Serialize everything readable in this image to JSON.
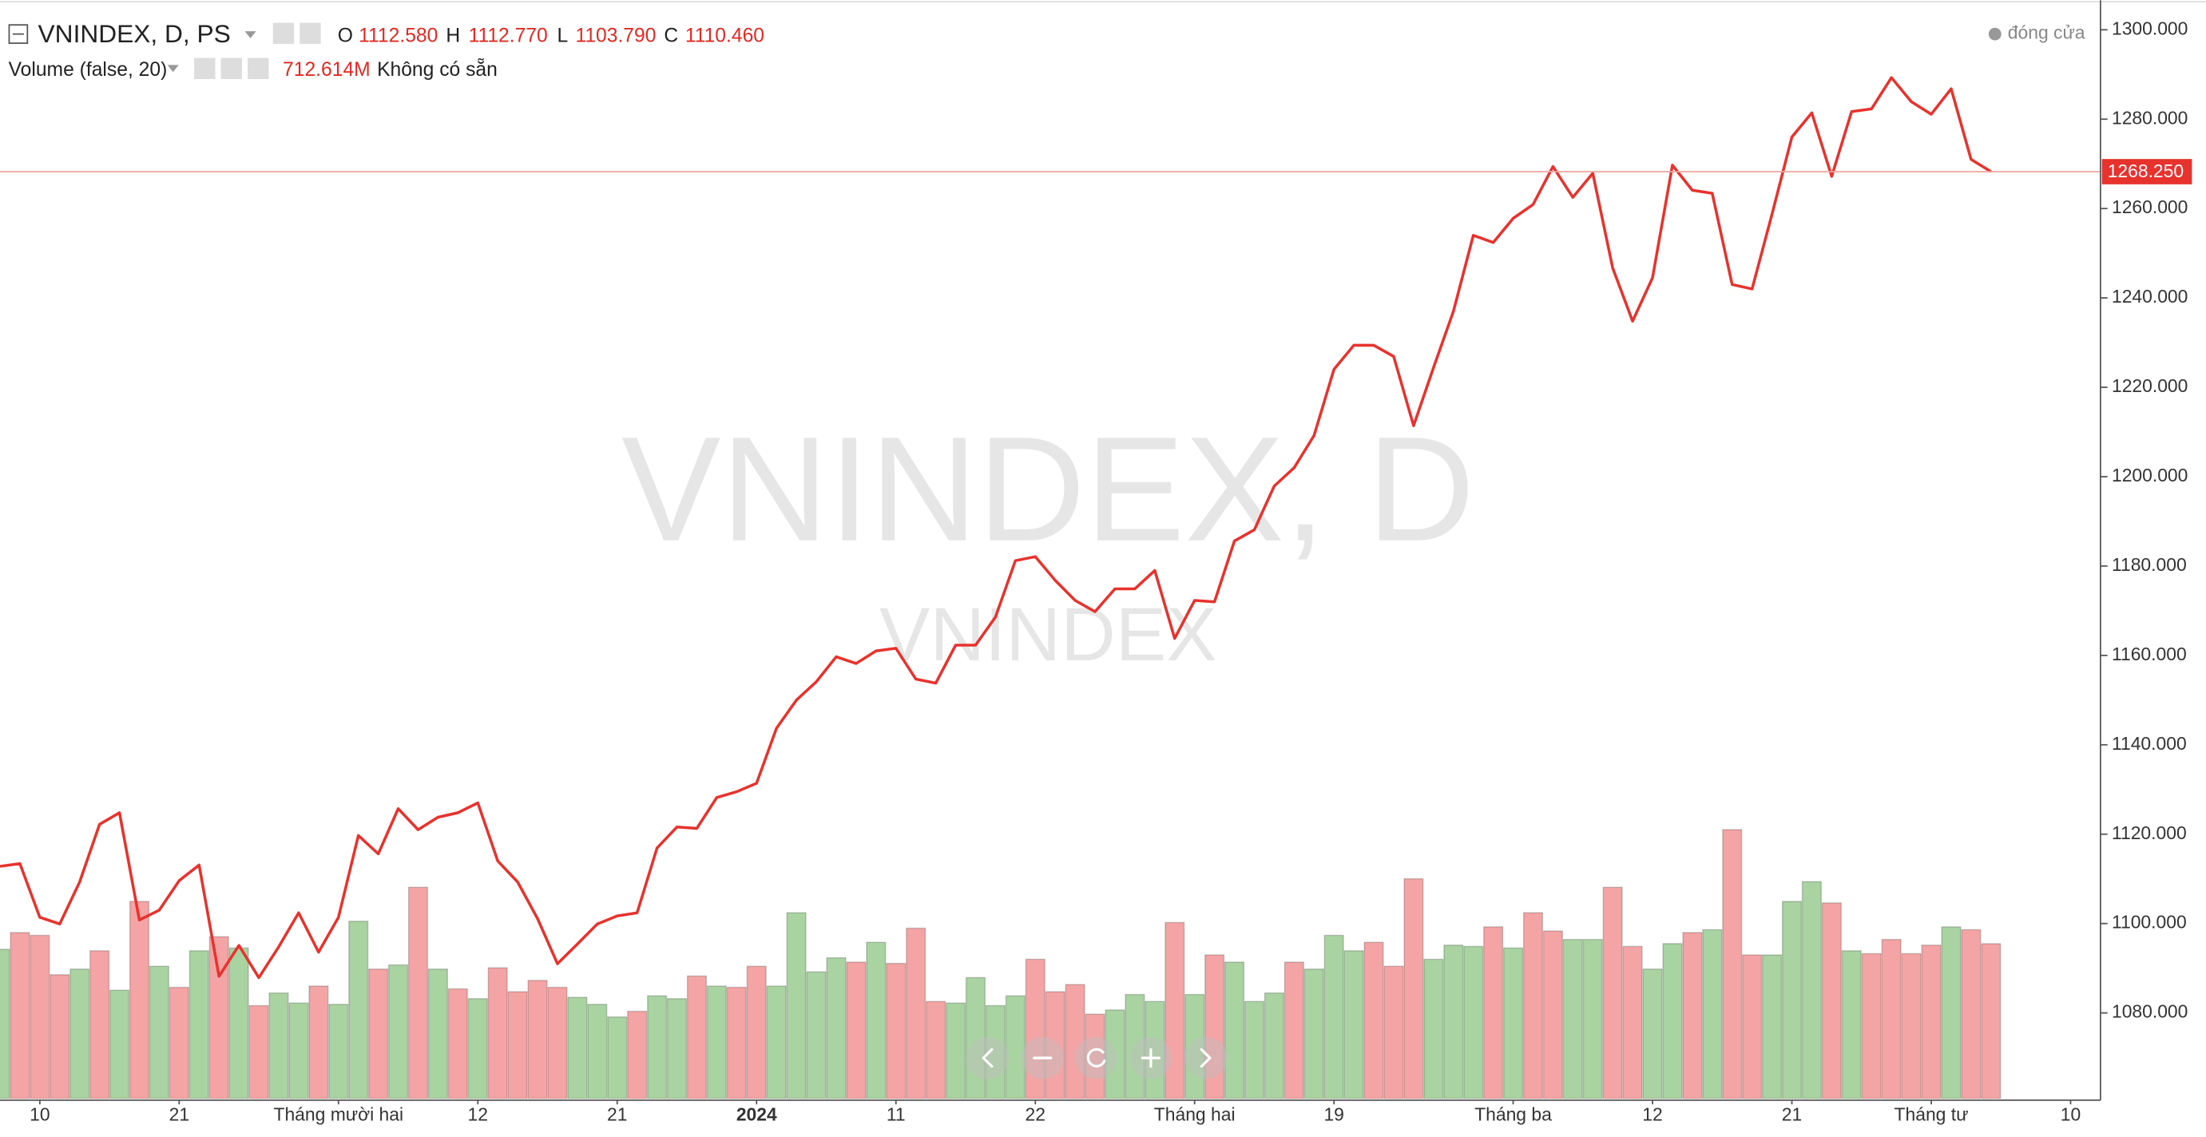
{
  "chart_data": {
    "type": "line",
    "status": "đóng cửa",
    "watermark": [
      "VNINDEX, D",
      "VNINDEX"
    ],
    "xlim": [
      0,
      105.5
    ],
    "xticks": [
      {
        "value": 2,
        "label": "10"
      },
      {
        "value": 9,
        "label": "21"
      },
      {
        "value": 17,
        "label": "Tháng mười hai"
      },
      {
        "value": 24,
        "label": "12"
      },
      {
        "value": 31,
        "label": "21"
      },
      {
        "value": 38,
        "label": "2024",
        "bold": true
      },
      {
        "value": 45,
        "label": "11"
      },
      {
        "value": 52,
        "label": "22"
      },
      {
        "value": 60,
        "label": "Tháng hai"
      },
      {
        "value": 67,
        "label": "19"
      },
      {
        "value": 76,
        "label": "Tháng ba"
      },
      {
        "value": 83,
        "label": "12"
      },
      {
        "value": 90,
        "label": "21"
      },
      {
        "value": 97,
        "label": "Tháng tư"
      },
      {
        "value": 104,
        "label": "10"
      }
    ],
    "ylim": [
      1060.8,
      1306.6
    ],
    "yticks": [
      {
        "value": 1080,
        "label": "1080.000"
      },
      {
        "value": 1100,
        "label": "1100.000"
      },
      {
        "value": 1120,
        "label": "1120.000"
      },
      {
        "value": 1140,
        "label": "1140.000"
      },
      {
        "value": 1160,
        "label": "1160.000"
      },
      {
        "value": 1180,
        "label": "1180.000"
      },
      {
        "value": 1200,
        "label": "1200.000"
      },
      {
        "value": 1220,
        "label": "1220.000"
      },
      {
        "value": 1240,
        "label": "1240.000"
      },
      {
        "value": 1260,
        "label": "1260.000"
      },
      {
        "value": 1280,
        "label": "1280.000"
      },
      {
        "value": 1300,
        "label": "1300.000"
      }
    ],
    "grid": false,
    "price_line": {
      "value": 1268.25,
      "label": "1268.250"
    },
    "series": [
      {
        "name": "VNINDEX, D, PS",
        "type": "line",
        "color": "#e8322d",
        "ohlc": [
          {
            "key": "O",
            "label": "1112.580"
          },
          {
            "key": "H",
            "label": "1112.770"
          },
          {
            "key": "L",
            "label": "1103.790"
          },
          {
            "key": "C",
            "label": "1110.460"
          }
        ],
        "values": [
          1112.8,
          1113.4,
          1101.4,
          1099.9,
          1109.3,
          1122.2,
          1124.8,
          1100.8,
          1103.0,
          1109.6,
          1113.1,
          1088.2,
          1095.1,
          1087.9,
          1094.8,
          1102.4,
          1093.6,
          1101.4,
          1119.7,
          1115.6,
          1125.7,
          1121.0,
          1123.8,
          1124.8,
          1127.0,
          1114.0,
          1109.3,
          1101.1,
          1091.0,
          1095.4,
          1099.9,
          1101.7,
          1102.4,
          1116.9,
          1121.6,
          1121.3,
          1128.2,
          1129.5,
          1131.4,
          1143.7,
          1150.0,
          1154.1,
          1159.7,
          1158.2,
          1161.0,
          1161.6,
          1154.7,
          1153.8,
          1162.3,
          1162.3,
          1168.6,
          1181.2,
          1182.1,
          1176.8,
          1172.3,
          1169.8,
          1174.9,
          1174.9,
          1179.0,
          1163.8,
          1172.3,
          1172.0,
          1185.6,
          1188.1,
          1197.9,
          1202.0,
          1209.2,
          1224.0,
          1229.4,
          1229.4,
          1226.9,
          1211.4,
          1224.4,
          1237.0,
          1254.0,
          1252.4,
          1257.8,
          1260.9,
          1269.4,
          1262.5,
          1267.9,
          1246.7,
          1234.8,
          1244.5,
          1269.7,
          1264.1,
          1263.4,
          1243.0,
          1242.0,
          1258.7,
          1276.0,
          1281.4,
          1267.2,
          1281.7,
          1282.3,
          1289.3,
          1283.9,
          1281.1,
          1286.8,
          1271.0,
          1268.25
        ]
      },
      {
        "name": "Volume (false, 20)",
        "type": "bar",
        "legend_value": "712.614M",
        "legend_status": "Không có sẵn",
        "values": [
          687,
          764,
          751,
          570,
          596,
          680,
          499,
          907,
          609,
          512,
          680,
          745,
          693,
          428,
          486,
          440,
          518,
          434,
          816,
          596,
          615,
          972,
          596,
          505,
          460,
          602,
          492,
          544,
          512,
          466,
          434,
          376,
          402,
          473,
          460,
          564,
          518,
          512,
          609,
          518,
          855,
          583,
          648,
          628,
          719,
          622,
          784,
          447,
          440,
          557,
          428,
          473,
          641,
          492,
          525,
          389,
          408,
          479,
          447,
          810,
          479,
          661,
          628,
          447,
          486,
          628,
          596,
          751,
          680,
          719,
          609,
          1011,
          641,
          706,
          700,
          790,
          693,
          855,
          771,
          732,
          732,
          972,
          700,
          596,
          713,
          764,
          777,
          1237,
          661,
          661,
          907,
          998,
          900,
          680,
          667,
          732,
          667,
          706,
          790,
          777,
          712.614
        ],
        "colors": [
          "#a9d3a1",
          "#f4a4a4",
          "#f4a4a4",
          "#f4a4a4",
          "#a9d3a1",
          "#f4a4a4",
          "#a9d3a1",
          "#f4a4a4",
          "#a9d3a1",
          "#f4a4a4",
          "#a9d3a1",
          "#f4a4a4",
          "#a9d3a1",
          "#f4a4a4",
          "#a9d3a1",
          "#a9d3a1",
          "#f4a4a4",
          "#a9d3a1",
          "#a9d3a1",
          "#f4a4a4",
          "#a9d3a1",
          "#f4a4a4",
          "#a9d3a1",
          "#f4a4a4",
          "#a9d3a1",
          "#f4a4a4",
          "#f4a4a4",
          "#f4a4a4",
          "#f4a4a4",
          "#a9d3a1",
          "#a9d3a1",
          "#a9d3a1",
          "#f4a4a4",
          "#a9d3a1",
          "#a9d3a1",
          "#f4a4a4",
          "#a9d3a1",
          "#f4a4a4",
          "#f4a4a4",
          "#a9d3a1",
          "#a9d3a1",
          "#a9d3a1",
          "#a9d3a1",
          "#f4a4a4",
          "#a9d3a1",
          "#f4a4a4",
          "#f4a4a4",
          "#f4a4a4",
          "#a9d3a1",
          "#a9d3a1",
          "#a9d3a1",
          "#a9d3a1",
          "#f4a4a4",
          "#f4a4a4",
          "#f4a4a4",
          "#f4a4a4",
          "#a9d3a1",
          "#a9d3a1",
          "#a9d3a1",
          "#f4a4a4",
          "#a9d3a1",
          "#f4a4a4",
          "#a9d3a1",
          "#a9d3a1",
          "#a9d3a1",
          "#f4a4a4",
          "#a9d3a1",
          "#a9d3a1",
          "#a9d3a1",
          "#f4a4a4",
          "#f4a4a4",
          "#f4a4a4",
          "#a9d3a1",
          "#a9d3a1",
          "#a9d3a1",
          "#f4a4a4",
          "#a9d3a1",
          "#f4a4a4",
          "#f4a4a4",
          "#a9d3a1",
          "#a9d3a1",
          "#f4a4a4",
          "#f4a4a4",
          "#a9d3a1",
          "#a9d3a1",
          "#f4a4a4",
          "#a9d3a1",
          "#f4a4a4",
          "#f4a4a4",
          "#a9d3a1",
          "#a9d3a1",
          "#a9d3a1",
          "#f4a4a4",
          "#a9d3a1",
          "#f4a4a4",
          "#f4a4a4",
          "#f4a4a4",
          "#f4a4a4",
          "#a9d3a1",
          "#f4a4a4",
          "#f4a4a4"
        ]
      }
    ]
  }
}
